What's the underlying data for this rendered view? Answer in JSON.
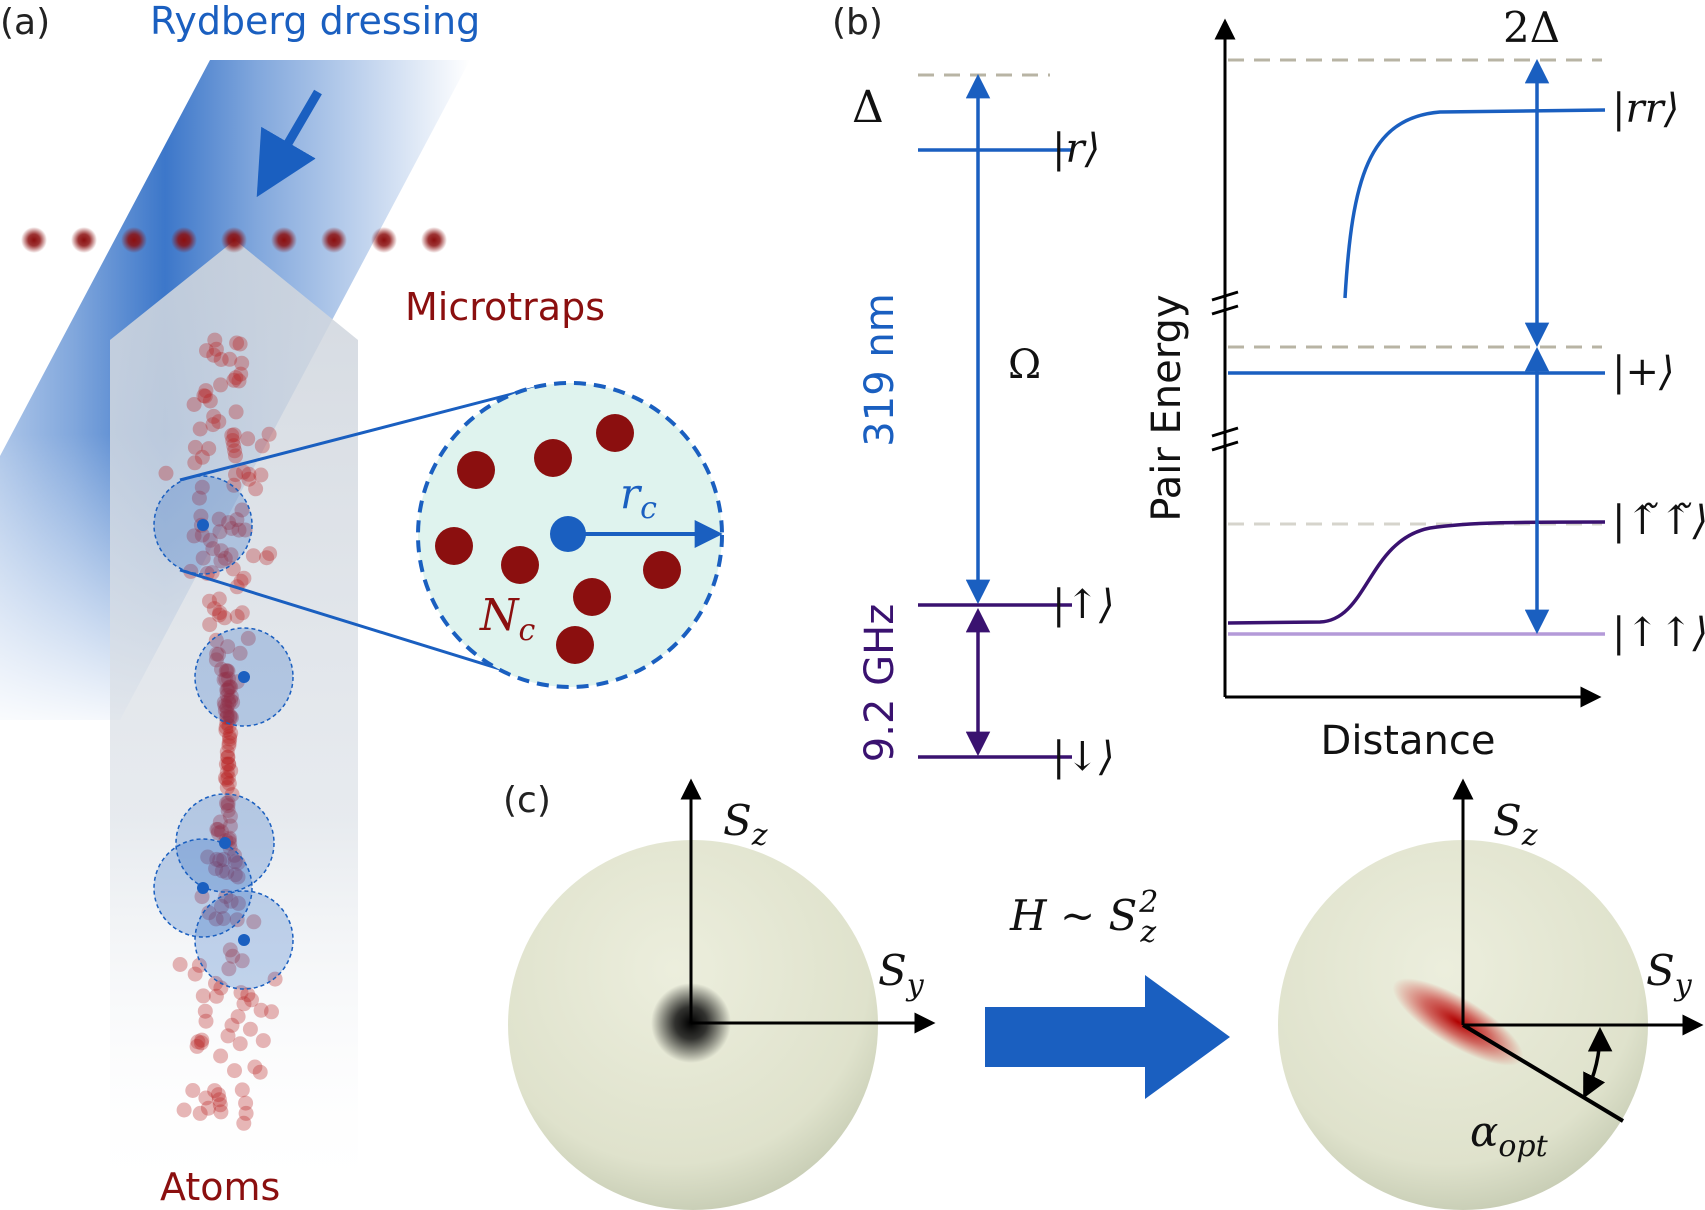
{
  "panel_a": {
    "label": "(a)",
    "beam_label": "Rydberg dressing",
    "microtraps_label": "Microtraps",
    "atoms_label": "Atoms",
    "radius_label": "r_c",
    "radius_label_main": "r",
    "radius_label_sub": "c",
    "count_label_main": "N",
    "count_label_sub": "c"
  },
  "panel_b": {
    "label": "(b)",
    "detuning_label": "Δ",
    "rabi_label": "Ω",
    "wavelength_label": "319 nm",
    "frequency_label": "9.2 GHz",
    "state_r": "|r⟩",
    "state_up": "|↑⟩",
    "state_down": "|↓⟩",
    "double_detuning": "2Δ",
    "pair_energy_axis": "Pair Energy",
    "distance_axis": "Distance",
    "state_rr": "|rr⟩",
    "state_plus": "|+⟩",
    "state_dressed": "|↑̃↑̃⟩",
    "state_upup": "|↑↑⟩"
  },
  "panel_c": {
    "label": "(c)",
    "axis_z_main": "S",
    "axis_z_sub": "z",
    "axis_y_main": "S",
    "axis_y_sub": "y",
    "hamiltonian_main": "H ∼ S",
    "hamiltonian_sup": "2",
    "hamiltonian_sub": "z",
    "angle_main": "α",
    "angle_sub": "opt"
  },
  "colors": {
    "blue": "#1a5fc0",
    "dark_red": "#8b0f0f",
    "purple": "#3a1270",
    "light_purple": "#b49ad8",
    "dashed_gray": "#b8b4a4",
    "sphere": "#e4e5d2"
  }
}
